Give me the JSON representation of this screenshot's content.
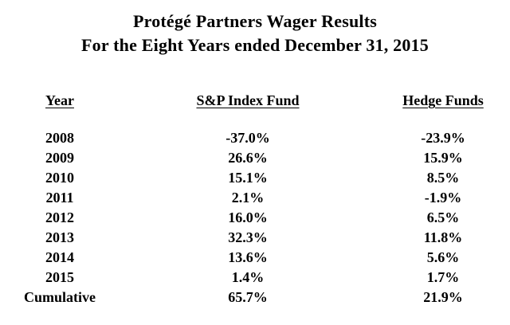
{
  "title": {
    "line1": "Protégé Partners Wager Results",
    "line2": "For the Eight Years ended December 31, 2015"
  },
  "table": {
    "headers": [
      "Year",
      "S&P Index Fund",
      "Hedge Funds"
    ],
    "rows": [
      {
        "year": "2008",
        "sp": "-37.0%",
        "hedge": "-23.9%"
      },
      {
        "year": "2009",
        "sp": "26.6%",
        "hedge": "15.9%"
      },
      {
        "year": "2010",
        "sp": "15.1%",
        "hedge": "8.5%"
      },
      {
        "year": "2011",
        "sp": "2.1%",
        "hedge": "-1.9%"
      },
      {
        "year": "2012",
        "sp": "16.0%",
        "hedge": "6.5%"
      },
      {
        "year": "2013",
        "sp": "32.3%",
        "hedge": "11.8%"
      },
      {
        "year": "2014",
        "sp": "13.6%",
        "hedge": "5.6%"
      },
      {
        "year": "2015",
        "sp": "1.4%",
        "hedge": "1.7%"
      },
      {
        "year": "Cumulative",
        "sp": "65.7%",
        "hedge": "21.9%"
      }
    ]
  },
  "chart_data": {
    "type": "table",
    "title": "Protégé Partners Wager Results",
    "subtitle": "For the Eight Years ended December 31, 2015",
    "columns": [
      "Year",
      "S&P Index Fund",
      "Hedge Funds"
    ],
    "categories": [
      "2008",
      "2009",
      "2010",
      "2011",
      "2012",
      "2013",
      "2014",
      "2015",
      "Cumulative"
    ],
    "series": [
      {
        "name": "S&P Index Fund",
        "values": [
          -37.0,
          26.6,
          15.1,
          2.1,
          16.0,
          32.3,
          13.6,
          1.4,
          65.7
        ]
      },
      {
        "name": "Hedge Funds",
        "values": [
          -23.9,
          15.9,
          8.5,
          -1.9,
          6.5,
          11.8,
          5.6,
          1.7,
          21.9
        ]
      }
    ],
    "unit": "%",
    "colors": {
      "text": "#000000",
      "background": "#ffffff"
    }
  }
}
